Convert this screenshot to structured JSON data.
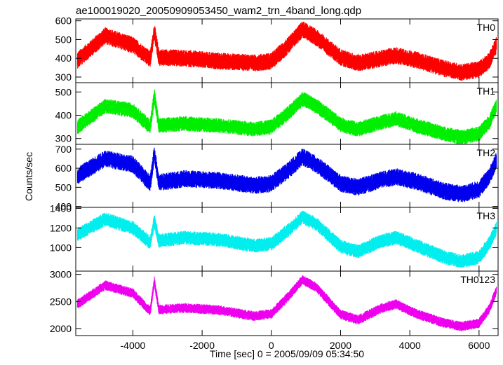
{
  "title": "ae100019020_20050909053450_wam2_trn_4band_long.qdp",
  "ylabel": "Counts/sec",
  "xlabel": "Time [sec] 0 = 2005/09/09 05:34:50",
  "chart_data": [
    {
      "type": "line",
      "label": "TH0",
      "color": "#ff0000",
      "xlim": [
        -5650,
        6550
      ],
      "ylim": [
        270,
        610
      ],
      "yticks": [
        300,
        400,
        500,
        600
      ],
      "xticks": [
        -4000,
        -2000,
        0,
        2000,
        4000,
        6000
      ],
      "base": 410,
      "amp_scale": 1.0,
      "noise": 35,
      "envelope": [
        [
          -5600,
          390
        ],
        [
          -4800,
          520
        ],
        [
          -4000,
          470
        ],
        [
          -3500,
          395
        ],
        [
          -3380,
          545
        ],
        [
          -3250,
          405
        ],
        [
          -2500,
          400
        ],
        [
          -1500,
          385
        ],
        [
          -500,
          375
        ],
        [
          0,
          385
        ],
        [
          500,
          470
        ],
        [
          900,
          555
        ],
        [
          1300,
          510
        ],
        [
          2000,
          405
        ],
        [
          2500,
          375
        ],
        [
          3200,
          400
        ],
        [
          3600,
          415
        ],
        [
          4200,
          390
        ],
        [
          5000,
          345
        ],
        [
          5500,
          325
        ],
        [
          6000,
          340
        ],
        [
          6300,
          390
        ],
        [
          6500,
          470
        ]
      ]
    },
    {
      "type": "line",
      "label": "TH1",
      "color": "#00ee00",
      "xlim": [
        -5650,
        6550
      ],
      "ylim": [
        275,
        540
      ],
      "yticks": [
        300,
        400,
        500
      ],
      "xticks": [
        -4000,
        -2000,
        0,
        2000,
        4000,
        6000
      ],
      "base": 360,
      "amp_scale": 1.0,
      "noise": 25,
      "envelope": [
        [
          -5600,
          350
        ],
        [
          -4800,
          440
        ],
        [
          -4000,
          420
        ],
        [
          -3500,
          350
        ],
        [
          -3380,
          485
        ],
        [
          -3250,
          355
        ],
        [
          -2500,
          365
        ],
        [
          -1500,
          355
        ],
        [
          -500,
          340
        ],
        [
          0,
          350
        ],
        [
          500,
          410
        ],
        [
          900,
          470
        ],
        [
          1300,
          440
        ],
        [
          2000,
          360
        ],
        [
          2500,
          340
        ],
        [
          3200,
          370
        ],
        [
          3600,
          385
        ],
        [
          4200,
          355
        ],
        [
          5000,
          320
        ],
        [
          5500,
          305
        ],
        [
          6000,
          320
        ],
        [
          6300,
          370
        ],
        [
          6500,
          440
        ]
      ]
    },
    {
      "type": "line",
      "label": "TH2",
      "color": "#0000ee",
      "xlim": [
        -5650,
        6550
      ],
      "ylim": [
        395,
        725
      ],
      "yticks": [
        400,
        500,
        600,
        700
      ],
      "xticks": [
        -4000,
        -2000,
        0,
        2000,
        4000,
        6000
      ],
      "base": 540,
      "amp_scale": 1.0,
      "noise": 35,
      "envelope": [
        [
          -5600,
          560
        ],
        [
          -4800,
          650
        ],
        [
          -4000,
          620
        ],
        [
          -3500,
          520
        ],
        [
          -3380,
          680
        ],
        [
          -3250,
          525
        ],
        [
          -2500,
          545
        ],
        [
          -1500,
          535
        ],
        [
          -500,
          510
        ],
        [
          0,
          520
        ],
        [
          500,
          590
        ],
        [
          900,
          660
        ],
        [
          1300,
          620
        ],
        [
          2000,
          520
        ],
        [
          2500,
          500
        ],
        [
          3200,
          540
        ],
        [
          3600,
          555
        ],
        [
          4200,
          530
        ],
        [
          5000,
          480
        ],
        [
          5500,
          465
        ],
        [
          6000,
          490
        ],
        [
          6300,
          560
        ],
        [
          6500,
          640
        ]
      ]
    },
    {
      "type": "line",
      "label": "TH3",
      "color": "#00eeee",
      "xlim": [
        -5650,
        6550
      ],
      "ylim": [
        760,
        1410
      ],
      "yticks": [
        1000,
        1200,
        1400
      ],
      "xticks": [
        -4000,
        -2000,
        0,
        2000,
        4000,
        6000
      ],
      "base": 1050,
      "amp_scale": 1.0,
      "noise": 55,
      "envelope": [
        [
          -5600,
          1130
        ],
        [
          -4800,
          1290
        ],
        [
          -4000,
          1200
        ],
        [
          -3500,
          1050
        ],
        [
          -3380,
          1270
        ],
        [
          -3250,
          1070
        ],
        [
          -2500,
          1100
        ],
        [
          -1500,
          1080
        ],
        [
          -500,
          1020
        ],
        [
          0,
          1040
        ],
        [
          500,
          1180
        ],
        [
          900,
          1310
        ],
        [
          1300,
          1240
        ],
        [
          2000,
          1010
        ],
        [
          2500,
          960
        ],
        [
          3200,
          1070
        ],
        [
          3600,
          1100
        ],
        [
          4200,
          1020
        ],
        [
          5000,
          900
        ],
        [
          5500,
          860
        ],
        [
          6000,
          900
        ],
        [
          6300,
          1050
        ],
        [
          6500,
          1190
        ]
      ]
    },
    {
      "type": "line",
      "label": "TH0123",
      "color": "#ee00ee",
      "xlim": [
        -5650,
        6550
      ],
      "ylim": [
        1870,
        3060
      ],
      "yticks": [
        2000,
        2500,
        3000
      ],
      "xticks": [
        -4000,
        -2000,
        0,
        2000,
        4000,
        6000
      ],
      "base": 2350,
      "amp_scale": 1.0,
      "noise": 70,
      "envelope": [
        [
          -5600,
          2450
        ],
        [
          -4800,
          2800
        ],
        [
          -4000,
          2650
        ],
        [
          -3500,
          2320
        ],
        [
          -3380,
          2870
        ],
        [
          -3250,
          2350
        ],
        [
          -2500,
          2380
        ],
        [
          -1500,
          2340
        ],
        [
          -500,
          2230
        ],
        [
          0,
          2270
        ],
        [
          500,
          2600
        ],
        [
          900,
          2900
        ],
        [
          1300,
          2760
        ],
        [
          2000,
          2260
        ],
        [
          2500,
          2160
        ],
        [
          3200,
          2380
        ],
        [
          3600,
          2450
        ],
        [
          4200,
          2270
        ],
        [
          5000,
          2100
        ],
        [
          5500,
          2040
        ],
        [
          6000,
          2100
        ],
        [
          6300,
          2370
        ],
        [
          6500,
          2700
        ]
      ]
    }
  ]
}
